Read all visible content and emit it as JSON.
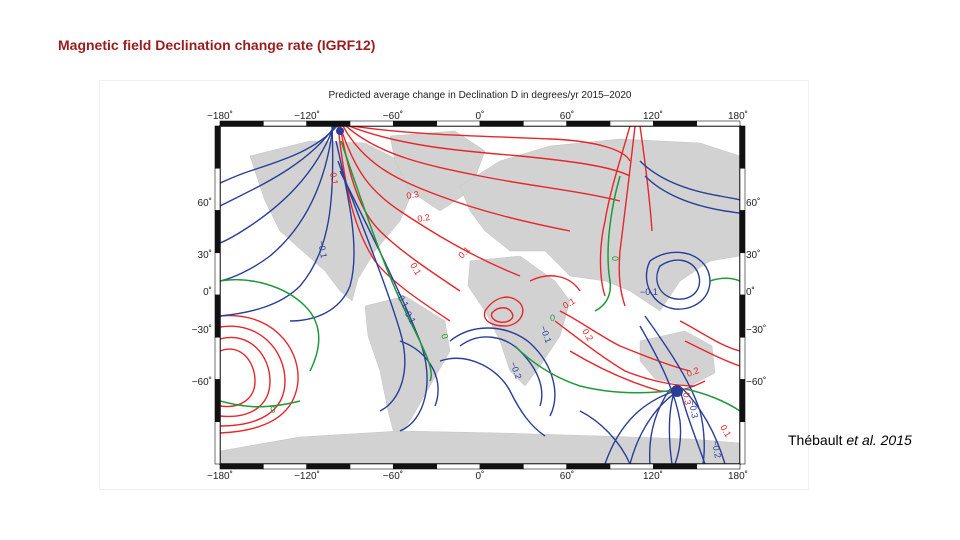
{
  "slide": {
    "title": "Magnetic field Declination change rate (IGRF12)",
    "citation_author": "Thébault",
    "citation_etal": "et al.",
    "citation_year": "2015"
  },
  "figure": {
    "title": "Predicted average change in Declination D in degrees/yr 2015–2020",
    "lon_ticks": [
      "−180˚",
      "−120˚",
      "−60˚",
      "0˚",
      "60˚",
      "120˚",
      "180˚"
    ],
    "lat_ticks": [
      "60˚",
      "30˚",
      "0˚",
      "−30˚",
      "−60˚"
    ],
    "contour_labels": [
      {
        "text": "0.1",
        "color": "red"
      },
      {
        "text": "0.3",
        "color": "red"
      },
      {
        "text": "0.2",
        "color": "red"
      },
      {
        "text": "−0.1",
        "color": "blue"
      },
      {
        "text": "0.1",
        "color": "red"
      },
      {
        "text": "0.1",
        "color": "red"
      },
      {
        "text": "−0.1",
        "color": "blue"
      },
      {
        "text": "−0.1",
        "color": "blue"
      },
      {
        "text": "0",
        "color": "green"
      },
      {
        "text": "0",
        "color": "green"
      },
      {
        "text": "−0.1",
        "color": "blue"
      },
      {
        "text": "−0.2",
        "color": "blue"
      },
      {
        "text": "0.1",
        "color": "red"
      },
      {
        "text": "0.2",
        "color": "red"
      },
      {
        "text": "0",
        "color": "green"
      },
      {
        "text": "−0.1",
        "color": "blue"
      },
      {
        "text": "0",
        "color": "green"
      },
      {
        "text": "0.2",
        "color": "red"
      },
      {
        "text": "0.3",
        "color": "red"
      },
      {
        "text": "−0.3",
        "color": "blue"
      },
      {
        "text": "0.1",
        "color": "red"
      },
      {
        "text": "−0.2",
        "color": "blue"
      }
    ],
    "colors": {
      "positive": "#e8262a",
      "negative": "#2a3e98",
      "zero": "#1f9a3a",
      "land": "#d2d2d2",
      "frame": "#111111"
    }
  }
}
